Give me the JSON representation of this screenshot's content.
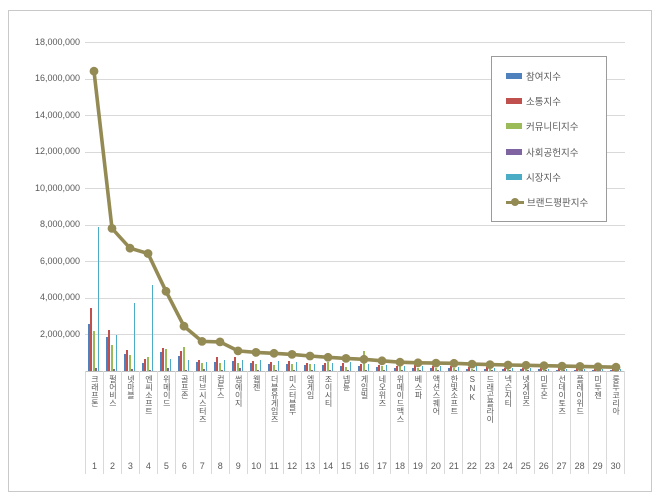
{
  "colors": {
    "participation_blue": "#4F81BD",
    "communication_red": "#C0504D",
    "community_green": "#9BBB59",
    "social_purple": "#8064A2",
    "market_cyan": "#4BACC6",
    "reputation_line_olive": "#948A54",
    "gridline": "#d9d9d9",
    "axis_text": "#595959",
    "frame_border": "#c9c9c9"
  },
  "legend": {
    "items": [
      {
        "label": "참여지수",
        "color": "#4F81BD",
        "type": "bar"
      },
      {
        "label": "소통지수",
        "color": "#C0504D",
        "type": "bar"
      },
      {
        "label": "커뮤니티지수",
        "color": "#9BBB59",
        "type": "bar"
      },
      {
        "label": "사회공헌지수",
        "color": "#8064A2",
        "type": "bar"
      },
      {
        "label": "시장지수",
        "color": "#4BACC6",
        "type": "bar"
      },
      {
        "label": "브랜드평판지수",
        "color": "#948A54",
        "type": "line"
      }
    ]
  },
  "chart_data": {
    "type": "bar",
    "title": "",
    "xlabel": "",
    "ylabel": "",
    "ylim": [
      0,
      18000000
    ],
    "ytick_step": 2000000,
    "yticks_labels": [
      "2,000,000",
      "4,000,000",
      "6,000,000",
      "8,000,000",
      "10,000,000",
      "12,000,000",
      "14,000,000",
      "16,000,000",
      "18,000,000"
    ],
    "grid": true,
    "legend_position": "upper right",
    "categories": [
      "크래프톤",
      "펄어비스",
      "넷마블",
      "엔씨소프트",
      "위메이드",
      "골프존",
      "데브시스터즈",
      "컴투스",
      "썸에이지",
      "웹젠",
      "더블유게임즈",
      "미스터블루",
      "엠게임",
      "조이시티",
      "넵튠",
      "게임빌",
      "네오위즈",
      "위메이드맥스",
      "베스파",
      "액션스퀘어",
      "한빛소프트",
      "SNK",
      "드래곤플라이",
      "넥슨지티",
      "넷게임즈",
      "미투온",
      "선데이토즈",
      "플레이위드",
      "미투젠",
      "룽투코리아"
    ],
    "rank_labels": [
      "1",
      "2",
      "3",
      "4",
      "5",
      "6",
      "7",
      "8",
      "9",
      "10",
      "11",
      "12",
      "13",
      "14",
      "15",
      "16",
      "17",
      "18",
      "19",
      "20",
      "21",
      "22",
      "23",
      "24",
      "25",
      "26",
      "27",
      "28",
      "29",
      "30"
    ],
    "series": [
      {
        "name": "참여지수",
        "type": "bar",
        "color": "#4F81BD",
        "values": [
          2550000,
          1870000,
          930000,
          450000,
          1030000,
          850000,
          500000,
          500000,
          550000,
          450000,
          360000,
          390000,
          320000,
          320000,
          260000,
          260000,
          210000,
          170000,
          170000,
          150000,
          150000,
          100000,
          120000,
          100000,
          100000,
          90000,
          80000,
          80000,
          70000,
          70000
        ]
      },
      {
        "name": "소통지수",
        "type": "bar",
        "color": "#C0504D",
        "values": [
          3450000,
          2250000,
          1150000,
          640000,
          1270000,
          1120000,
          610000,
          770000,
          780000,
          540000,
          500000,
          540000,
          450000,
          450000,
          450000,
          360000,
          320000,
          300000,
          320000,
          300000,
          270000,
          220000,
          200000,
          180000,
          170000,
          160000,
          150000,
          140000,
          130000,
          120000
        ]
      },
      {
        "name": "커뮤니티지수",
        "type": "bar",
        "color": "#9BBB59",
        "values": [
          2200000,
          1430000,
          870000,
          780000,
          1230000,
          1300000,
          430000,
          420000,
          450000,
          390000,
          320000,
          360000,
          410000,
          520000,
          210000,
          1120000,
          250000,
          260000,
          170000,
          140000,
          180000,
          120000,
          100000,
          120000,
          100000,
          90000,
          100000,
          80000,
          70000,
          80000
        ]
      },
      {
        "name": "사회공헌지수",
        "type": "bar",
        "color": "#8064A2",
        "values": [
          180000,
          120000,
          100000,
          60000,
          170000,
          50000,
          120000,
          60000,
          140000,
          50000,
          40000,
          40000,
          40000,
          40000,
          30000,
          30000,
          30000,
          30000,
          20000,
          20000,
          30000,
          30000,
          20000,
          20000,
          20000,
          20000,
          20000,
          20000,
          10000,
          10000
        ]
      },
      {
        "name": "시장지수",
        "type": "bar",
        "color": "#4BACC6",
        "values": [
          7900000,
          1950000,
          3730000,
          4720000,
          680000,
          600000,
          520000,
          630000,
          620000,
          580000,
          540000,
          500000,
          360000,
          450000,
          500000,
          360000,
          320000,
          250000,
          280000,
          270000,
          200000,
          250000,
          180000,
          150000,
          150000,
          130000,
          120000,
          110000,
          100000,
          100000
        ]
      },
      {
        "name": "브랜드평판지수",
        "type": "line",
        "color": "#948A54",
        "values": [
          16400000,
          7800000,
          6720000,
          6430000,
          4360000,
          2450000,
          1620000,
          1590000,
          1100000,
          1020000,
          970000,
          910000,
          820000,
          750000,
          690000,
          640000,
          560000,
          480000,
          450000,
          430000,
          420000,
          380000,
          350000,
          330000,
          310000,
          290000,
          270000,
          250000,
          230000,
          210000
        ]
      }
    ]
  }
}
